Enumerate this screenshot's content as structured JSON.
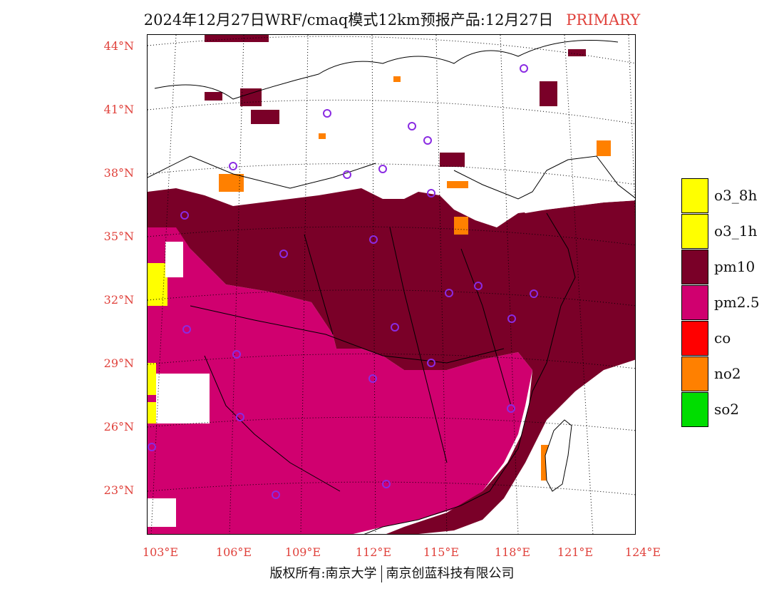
{
  "title": "2024年12月27日WRF/cmaq模式12km预报产品:12月27日",
  "title_tag": "PRIMARY",
  "lat_labels": [
    "44°N",
    "41°N",
    "38°N",
    "35°N",
    "32°N",
    "29°N",
    "26°N",
    "23°N"
  ],
  "lon_labels": [
    "103°E",
    "106°E",
    "109°E",
    "112°E",
    "115°E",
    "118°E",
    "121°E",
    "124°E"
  ],
  "legend": [
    {
      "label": "o3_8h",
      "color": "#ffff00"
    },
    {
      "label": "o3_1h",
      "color": "#ffff00"
    },
    {
      "label": "pm10",
      "color": "#7a0028"
    },
    {
      "label": "pm2.5",
      "color": "#d0006f"
    },
    {
      "label": "co",
      "color": "#ff0000"
    },
    {
      "label": "no2",
      "color": "#ff8000"
    },
    {
      "label": "so2",
      "color": "#00dd00"
    }
  ],
  "footer": {
    "left": "版权所有:南京大学",
    "right": "南京创蓝科技有限公司"
  },
  "colors": {
    "axis_label": "#e0413b",
    "pm10": "#7a0028",
    "pm25": "#d0006f",
    "no2": "#ff8000",
    "o3": "#ffff00",
    "station": "#8a2be2"
  }
}
